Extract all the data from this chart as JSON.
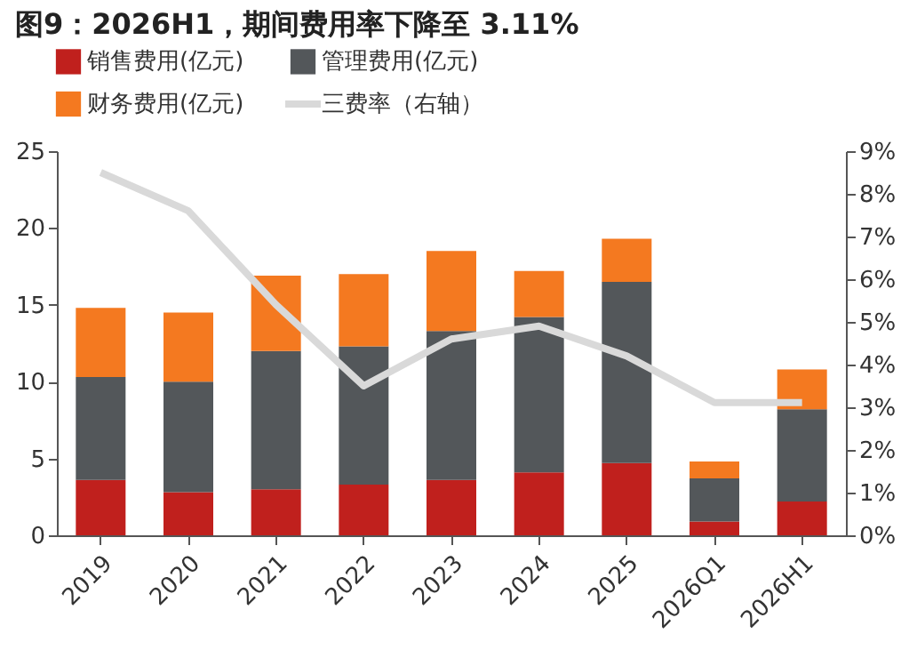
{
  "chart_data": {
    "type": "bar",
    "title": "图9：2026H1，期间费用率下降至 3.11%",
    "stacked": true,
    "legend": "top",
    "grid": false,
    "categories": [
      "2019",
      "2020",
      "2021",
      "2022",
      "2023",
      "2024",
      "2025",
      "2026Q1",
      "2026H1"
    ],
    "series": [
      {
        "name": "销售费用(亿元)",
        "color": "#c0201d",
        "values": [
          3.6,
          2.8,
          3.0,
          3.3,
          3.6,
          4.1,
          4.7,
          0.9,
          2.2
        ]
      },
      {
        "name": "管理费用(亿元)",
        "color": "#53575a",
        "values": [
          6.7,
          7.2,
          9.0,
          9.0,
          9.7,
          10.1,
          11.8,
          2.8,
          6.0
        ]
      },
      {
        "name": "财务费用(亿元)",
        "color": "#f47920",
        "values": [
          4.5,
          4.5,
          4.9,
          4.7,
          5.2,
          3.0,
          2.8,
          1.1,
          2.6
        ]
      },
      {
        "name": "三费率（右轴）",
        "type": "line",
        "axis": "y2",
        "color": "#d9d9d9",
        "values": [
          8.5,
          7.6,
          5.4,
          3.5,
          4.6,
          4.9,
          4.2,
          3.11,
          3.11
        ]
      }
    ],
    "ylim": [
      0,
      25
    ],
    "yticks": [
      0,
      5,
      10,
      15,
      20,
      25
    ],
    "y2lim": [
      0,
      9
    ],
    "y2ticks": [
      {
        "value": 0,
        "label": "0%"
      },
      {
        "value": 1,
        "label": "1%"
      },
      {
        "value": 2,
        "label": "2%"
      },
      {
        "value": 3,
        "label": "3%"
      },
      {
        "value": 4,
        "label": "4%"
      },
      {
        "value": 5,
        "label": "5%"
      },
      {
        "value": 6,
        "label": "6%"
      },
      {
        "value": 7,
        "label": "7%"
      },
      {
        "value": 8,
        "label": "8%"
      },
      {
        "value": 9,
        "label": "9%"
      }
    ]
  }
}
